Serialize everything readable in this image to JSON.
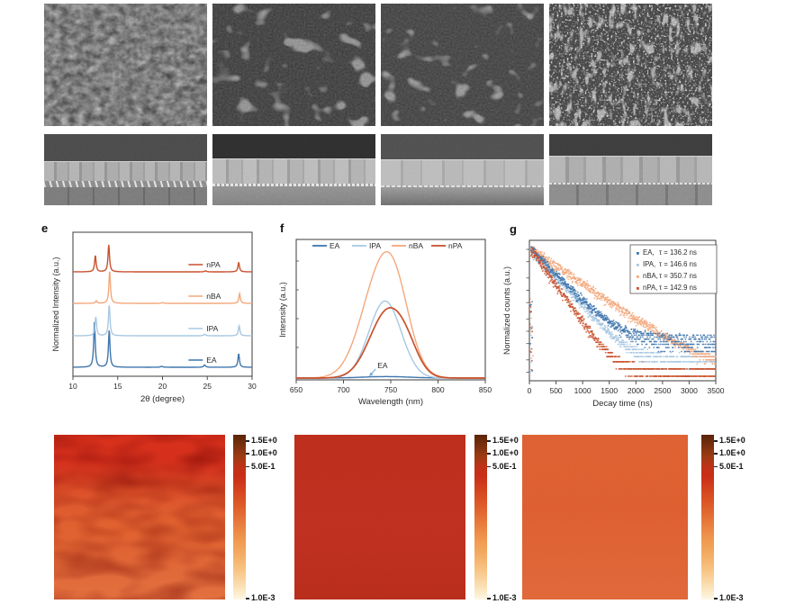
{
  "panel_labels": {
    "e": "e",
    "f": "f",
    "g": "g"
  },
  "chart_data": [
    {
      "id": "xrd",
      "panel": "e",
      "type": "line",
      "xlabel": "2θ (degree)",
      "ylabel": "Normalized Intensity (a.u.)",
      "xlim": [
        10,
        30
      ],
      "xticks": [
        10,
        15,
        20,
        25,
        30
      ],
      "series": [
        {
          "name": "EA",
          "color": "#3f76ad",
          "base": 158,
          "amp": 50,
          "label_x": 24.9,
          "label_line": [
            22.9,
            24.5
          ],
          "peaks": [
            {
              "x": 12.4,
              "h": 1.0,
              "w": 0.1
            },
            {
              "x": 14.05,
              "h": 0.82,
              "w": 0.1
            },
            {
              "x": 19.9,
              "h": 0.02,
              "w": 0.15
            },
            {
              "x": 24.7,
              "h": 0.05,
              "w": 0.12
            },
            {
              "x": 28.5,
              "h": 0.3,
              "w": 0.1
            }
          ]
        },
        {
          "name": "IPA",
          "color": "#a8c8e2",
          "base": 123,
          "amp": 34,
          "label_x": 24.9,
          "label_line": [
            22.9,
            24.5
          ],
          "peaks": [
            {
              "x": 12.55,
              "h": 0.62,
              "w": 0.1
            },
            {
              "x": 14.05,
              "h": 1.0,
              "w": 0.1
            },
            {
              "x": 24.7,
              "h": 0.05,
              "w": 0.12
            },
            {
              "x": 28.55,
              "h": 0.33,
              "w": 0.1
            }
          ]
        },
        {
          "name": "nBA",
          "color": "#f3a87c",
          "base": 87,
          "amp": 36,
          "label_x": 24.9,
          "label_line": [
            22.9,
            24.5
          ],
          "peaks": [
            {
              "x": 12.6,
              "h": 0.08,
              "w": 0.1
            },
            {
              "x": 14.1,
              "h": 1.0,
              "w": 0.1
            },
            {
              "x": 20.0,
              "h": 0.02,
              "w": 0.15
            },
            {
              "x": 28.6,
              "h": 0.3,
              "w": 0.1
            }
          ]
        },
        {
          "name": "nPA",
          "color": "#c9512c",
          "base": 52,
          "amp": 30,
          "label_x": 24.9,
          "label_line": [
            22.9,
            24.5
          ],
          "peaks": [
            {
              "x": 12.5,
              "h": 0.6,
              "w": 0.1
            },
            {
              "x": 14.0,
              "h": 1.0,
              "w": 0.1
            },
            {
              "x": 24.8,
              "h": 0.04,
              "w": 0.12
            },
            {
              "x": 28.5,
              "h": 0.35,
              "w": 0.1
            }
          ]
        }
      ]
    },
    {
      "id": "pl",
      "panel": "f",
      "type": "line",
      "xlabel": "Wavelength (nm)",
      "ylabel": "Intesnsity (a.u.)",
      "xlim": [
        650,
        850
      ],
      "xticks": [
        650,
        700,
        750,
        800,
        850
      ],
      "legend": [
        "EA",
        "IPA",
        "nBA",
        "nPA"
      ],
      "series": [
        {
          "name": "EA",
          "color": "#3f76ad",
          "components": [
            {
              "a": 0.012,
              "c": 745,
              "s": 25
            }
          ]
        },
        {
          "name": "IPA",
          "color": "#a8c8e2",
          "components": [
            {
              "a": 0.62,
              "c": 744,
              "s": 17
            }
          ]
        },
        {
          "name": "nBA",
          "color": "#f3a87c",
          "components": [
            {
              "a": 0.88,
              "c": 741,
              "s": 21
            },
            {
              "a": 0.22,
              "c": 757,
              "s": 14
            }
          ]
        },
        {
          "name": "nPA",
          "color": "#c9512c",
          "components": [
            {
              "a": 0.54,
              "c": 747,
              "s": 19
            },
            {
              "a": 0.1,
              "c": 768,
              "s": 12
            }
          ]
        }
      ],
      "annotation": {
        "text": "EA",
        "x": 734,
        "arrow_x": 727,
        "color": "#6fa7d4"
      }
    },
    {
      "id": "trpl",
      "panel": "g",
      "type": "scatter",
      "yscale": "log",
      "xlabel": "Decay time (ns)",
      "ylabel": "Normalized counts (a.u.)",
      "xlim": [
        0,
        3500
      ],
      "xticks": [
        0,
        500,
        1000,
        1500,
        2000,
        2500,
        3000,
        3500
      ],
      "legend": [
        {
          "name": "EA,",
          "tau": "τ = 136.2 ns",
          "color": "#3f76ad"
        },
        {
          "name": "IPA,",
          "tau": "τ = 146.6 ns",
          "color": "#a8c8e2"
        },
        {
          "name": "nBA,",
          "tau": "τ = 350.7 ns",
          "color": "#f3a87c"
        },
        {
          "name": "nPA,",
          "tau": "τ = 142.9 ns",
          "color": "#c9512c"
        }
      ],
      "series": [
        {
          "name": "IPA",
          "color": "#a8c8e2",
          "sim": {
            "tau": 300,
            "floor": 0.0018,
            "q": 0.0006,
            "seed": 21,
            "pre": 8
          }
        },
        {
          "name": "nBA",
          "color": "#f3a87c",
          "sim": {
            "tau": 500,
            "floor": 0.001,
            "q": 0.0004,
            "seed": 7,
            "pre": 6
          }
        },
        {
          "name": "EA",
          "color": "#3f76ad",
          "sim": {
            "tau": 330,
            "floor": 0.0055,
            "q": 0.0008,
            "seed": 3,
            "pre": 8
          }
        },
        {
          "name": "nPA",
          "color": "#c9512c",
          "sim": {
            "tau": 235,
            "floor": 0.0009,
            "q": 0.0006,
            "seed": 13,
            "pre": 14
          }
        }
      ]
    }
  ],
  "pl_maps": {
    "ticks": [
      "1.5E+0",
      "1.0E+0",
      "5.0E-1",
      "1.0E-3"
    ],
    "tick_pos_pct": [
      3.5,
      11,
      19,
      99
    ],
    "colorbar_stops": [
      "#5a2407 0%",
      "#7b3110 7%",
      "#9c3a13 13%",
      "#bc3317 19%",
      "#ca2d18 25%",
      "#d4451f 34%",
      "#de5f2b 44%",
      "#e87c3d 54%",
      "#f0994f 64%",
      "#f4af67 74%",
      "#f8c98d 84%",
      "#fbe3ba 93%",
      "#fdf7e4 100%"
    ],
    "maps": [
      {
        "background": [
          "#d8301b 0%",
          "#d5301c 16%",
          "#d63a20 24%",
          "#dc4f28 34%",
          "#de5a2e 44%",
          "#e0612f 56%",
          "#e06433 70%",
          "#e16a3a 85%",
          "#e3703f 100%"
        ],
        "blotchy": true
      },
      {
        "background": [
          "#bd2e1c 0%",
          "#c03020 55%",
          "#b92d1b 100%"
        ],
        "blotchy": false
      },
      {
        "background": [
          "#de6233 0%",
          "#dd5f31 45%",
          "#e0683a 100%"
        ],
        "blotchy": false
      }
    ]
  }
}
